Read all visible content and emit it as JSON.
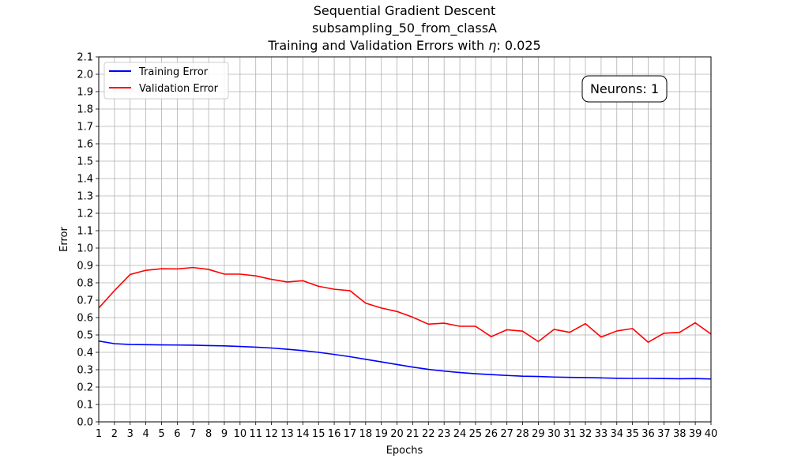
{
  "chart_data": {
    "type": "line",
    "title_lines": [
      "Sequential Gradient Descent",
      "subsampling_50_from_classA"
    ],
    "title_prefix": "Training and Validation Errors with ",
    "title_symbol": "η",
    "title_suffix": ": 0.025",
    "xlabel": "Epochs",
    "ylabel": "Error",
    "xlim": [
      1,
      40
    ],
    "ylim": [
      0,
      2.1
    ],
    "x_ticks": [
      1,
      2,
      3,
      4,
      5,
      6,
      7,
      8,
      9,
      10,
      11,
      12,
      13,
      14,
      15,
      16,
      17,
      18,
      19,
      20,
      21,
      22,
      23,
      24,
      25,
      26,
      27,
      28,
      29,
      30,
      31,
      32,
      33,
      34,
      35,
      36,
      37,
      38,
      39,
      40
    ],
    "y_ticks": [
      0.0,
      0.1,
      0.2,
      0.3,
      0.4,
      0.5,
      0.6,
      0.7,
      0.8,
      0.9,
      1.0,
      1.1,
      1.2,
      1.3,
      1.4,
      1.5,
      1.6,
      1.7,
      1.8,
      1.9,
      2.0,
      2.1
    ],
    "grid": true,
    "legend_position": "top-left",
    "annotation": "Neurons: 1",
    "x": [
      1,
      2,
      3,
      4,
      5,
      6,
      7,
      8,
      9,
      10,
      11,
      12,
      13,
      14,
      15,
      16,
      17,
      18,
      19,
      20,
      21,
      22,
      23,
      24,
      25,
      26,
      27,
      28,
      29,
      30,
      31,
      32,
      33,
      34,
      35,
      36,
      37,
      38,
      39,
      40
    ],
    "series": [
      {
        "name": "Training Error",
        "color": "#0000ff",
        "values": [
          0.465,
          0.45,
          0.445,
          0.444,
          0.443,
          0.442,
          0.441,
          0.439,
          0.437,
          0.434,
          0.43,
          0.425,
          0.418,
          0.41,
          0.4,
          0.388,
          0.375,
          0.36,
          0.345,
          0.33,
          0.315,
          0.302,
          0.292,
          0.284,
          0.277,
          0.272,
          0.267,
          0.263,
          0.261,
          0.258,
          0.256,
          0.255,
          0.253,
          0.251,
          0.25,
          0.25,
          0.249,
          0.248,
          0.249,
          0.247
        ]
      },
      {
        "name": "Validation Error",
        "color": "#ff0000",
        "values": [
          0.655,
          0.755,
          0.848,
          0.872,
          0.881,
          0.88,
          0.888,
          0.877,
          0.85,
          0.85,
          0.84,
          0.82,
          0.805,
          0.812,
          0.78,
          0.763,
          0.755,
          0.683,
          0.655,
          0.635,
          0.602,
          0.562,
          0.568,
          0.55,
          0.55,
          0.49,
          0.53,
          0.522,
          0.462,
          0.532,
          0.515,
          0.565,
          0.488,
          0.523,
          0.537,
          0.458,
          0.51,
          0.515,
          0.57,
          0.505
        ]
      }
    ]
  }
}
